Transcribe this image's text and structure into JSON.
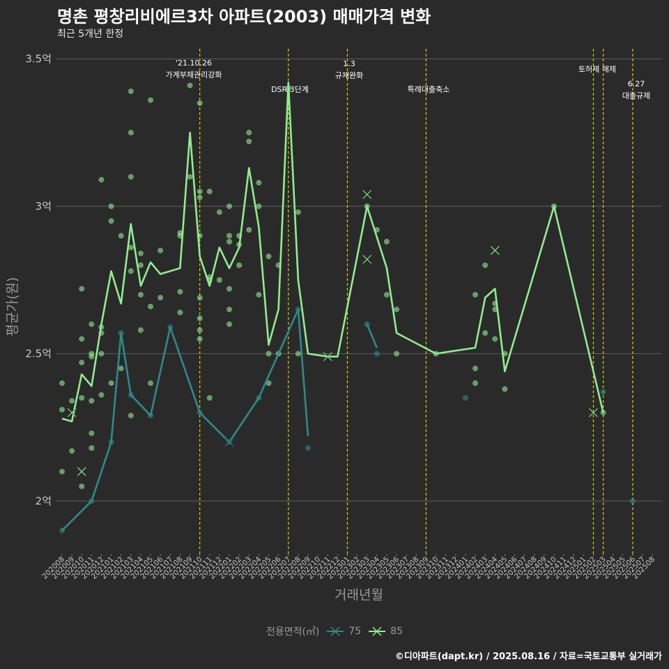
{
  "title": "명촌 평창리비에르3차 아파트(2003) 매매가격 변화",
  "subtitle": "최근 5개년 한정",
  "caption": "©디아파트(dapt.kr) / 2025.08.16 / 자료=국토교통부 실거래가",
  "legend": {
    "title": "전용면적(㎡)",
    "items": [
      "75",
      "85"
    ]
  },
  "colors": {
    "background": "#2b2a2b",
    "grid": "#555555",
    "vline": "#d4d400",
    "s75": "#2e8b8b",
    "s85": "#90ee90"
  },
  "chart_data": {
    "type": "line",
    "xlabel": "거래년월",
    "ylabel": "평균가(원)",
    "ylim": [
      1.8,
      3.55
    ],
    "yticks": [
      {
        "value": 2.0,
        "label": "2억"
      },
      {
        "value": 2.5,
        "label": "2.5억"
      },
      {
        "value": 3.0,
        "label": "3억"
      },
      {
        "value": 3.5,
        "label": "3.5억"
      }
    ],
    "x_categories": [
      "202008",
      "202009",
      "202010",
      "202011",
      "202012",
      "202101",
      "202102",
      "202103",
      "202104",
      "202105",
      "202106",
      "202107",
      "202108",
      "202109",
      "202110",
      "202111",
      "202112",
      "202201",
      "202202",
      "202203",
      "202204",
      "202205",
      "202206",
      "202207",
      "202208",
      "202209",
      "202210",
      "202211",
      "202212",
      "202301",
      "202302",
      "202303",
      "202304",
      "202305",
      "202306",
      "202307",
      "202308",
      "202309",
      "202310",
      "202311",
      "202312",
      "202401",
      "202402",
      "202403",
      "202404",
      "202405",
      "202406",
      "202407",
      "202408",
      "202409",
      "202410",
      "202411",
      "202412",
      "202501",
      "202502",
      "202503",
      "202504",
      "202505",
      "202506",
      "202507",
      "202508"
    ],
    "grid": true,
    "legend_position": "bottom",
    "series": [
      {
        "name": "75",
        "line": [
          [
            "202008",
            1.9
          ],
          [
            "202011",
            2.0
          ],
          [
            "202101",
            2.2
          ],
          [
            "202102",
            2.57
          ],
          [
            "202103",
            2.36
          ],
          [
            "202105",
            2.29
          ],
          [
            "202107",
            2.59
          ],
          [
            "202110",
            2.3
          ],
          [
            "202201",
            2.2
          ],
          [
            "202204",
            2.35
          ],
          [
            "202208",
            2.65
          ],
          [
            "202209",
            2.22
          ]
        ],
        "line2": [
          [
            "202303",
            2.6
          ],
          [
            "202304",
            2.52
          ]
        ],
        "points": [
          [
            "202008",
            1.9
          ],
          [
            "202011",
            2.0
          ],
          [
            "202101",
            2.2
          ],
          [
            "202102",
            2.57
          ],
          [
            "202103",
            2.36
          ],
          [
            "202105",
            2.29
          ],
          [
            "202107",
            2.59
          ],
          [
            "202110",
            2.3
          ],
          [
            "202201",
            2.2
          ],
          [
            "202204",
            2.35
          ],
          [
            "202208",
            2.65
          ],
          [
            "202209",
            2.18
          ],
          [
            "202303",
            2.6
          ],
          [
            "202304",
            2.5
          ],
          [
            "202401",
            2.35
          ],
          [
            "202503",
            2.37
          ],
          [
            "202506",
            2.0
          ]
        ],
        "crosses": [
          [
            "202201",
            2.2
          ]
        ]
      },
      {
        "name": "85",
        "line": [
          [
            "202008",
            2.28
          ],
          [
            "202009",
            2.27
          ],
          [
            "202010",
            2.43
          ],
          [
            "202011",
            2.39
          ],
          [
            "202012",
            2.6
          ],
          [
            "202101",
            2.78
          ],
          [
            "202102",
            2.67
          ],
          [
            "202103",
            2.94
          ],
          [
            "202104",
            2.73
          ],
          [
            "202105",
            2.81
          ],
          [
            "202106",
            2.77
          ],
          [
            "202108",
            2.79
          ],
          [
            "202109",
            3.25
          ],
          [
            "202110",
            2.83
          ],
          [
            "202111",
            2.73
          ],
          [
            "202112",
            2.86
          ],
          [
            "202201",
            2.79
          ],
          [
            "202202",
            2.86
          ],
          [
            "202203",
            3.13
          ],
          [
            "202204",
            2.93
          ],
          [
            "202205",
            2.53
          ],
          [
            "202206",
            2.65
          ],
          [
            "202207",
            3.42
          ],
          [
            "202208",
            2.75
          ],
          [
            "202209",
            2.5
          ],
          [
            "202211",
            2.49
          ],
          [
            "202212",
            2.49
          ],
          [
            "202303",
            3.0
          ],
          [
            "202305",
            2.79
          ],
          [
            "202306",
            2.57
          ],
          [
            "202310",
            2.5
          ],
          [
            "202402",
            2.52
          ],
          [
            "202403",
            2.69
          ],
          [
            "202404",
            2.72
          ],
          [
            "202405",
            2.44
          ],
          [
            "202410",
            3.0
          ],
          [
            "202503",
            2.3
          ]
        ],
        "points": [
          [
            "202008",
            2.4
          ],
          [
            "202008",
            2.31
          ],
          [
            "202008",
            2.1
          ],
          [
            "202009",
            2.34
          ],
          [
            "202009",
            2.17
          ],
          [
            "202010",
            2.72
          ],
          [
            "202010",
            2.55
          ],
          [
            "202010",
            2.47
          ],
          [
            "202010",
            2.35
          ],
          [
            "202010",
            2.05
          ],
          [
            "202011",
            2.6
          ],
          [
            "202011",
            2.5
          ],
          [
            "202011",
            2.49
          ],
          [
            "202011",
            2.34
          ],
          [
            "202011",
            2.23
          ],
          [
            "202011",
            2.18
          ],
          [
            "202012",
            3.09
          ],
          [
            "202012",
            2.59
          ],
          [
            "202012",
            2.57
          ],
          [
            "202012",
            2.5
          ],
          [
            "202012",
            2.36
          ],
          [
            "202101",
            3.0
          ],
          [
            "202101",
            2.95
          ],
          [
            "202101",
            2.4
          ],
          [
            "202102",
            2.9
          ],
          [
            "202102",
            2.45
          ],
          [
            "202103",
            3.39
          ],
          [
            "202103",
            3.25
          ],
          [
            "202103",
            3.1
          ],
          [
            "202103",
            2.86
          ],
          [
            "202103",
            2.78
          ],
          [
            "202103",
            2.29
          ],
          [
            "202104",
            2.84
          ],
          [
            "202104",
            2.8
          ],
          [
            "202104",
            2.7
          ],
          [
            "202104",
            2.58
          ],
          [
            "202105",
            3.36
          ],
          [
            "202105",
            2.66
          ],
          [
            "202105",
            2.4
          ],
          [
            "202106",
            2.85
          ],
          [
            "202106",
            2.69
          ],
          [
            "202108",
            2.91
          ],
          [
            "202108",
            2.9
          ],
          [
            "202108",
            2.71
          ],
          [
            "202108",
            2.64
          ],
          [
            "202109",
            3.41
          ],
          [
            "202109",
            3.1
          ],
          [
            "202110",
            3.35
          ],
          [
            "202110",
            3.05
          ],
          [
            "202110",
            3.03
          ],
          [
            "202110",
            2.9
          ],
          [
            "202110",
            2.69
          ],
          [
            "202110",
            2.62
          ],
          [
            "202110",
            2.58
          ],
          [
            "202110",
            2.55
          ],
          [
            "202111",
            3.05
          ],
          [
            "202111",
            2.76
          ],
          [
            "202111",
            2.75
          ],
          [
            "202111",
            2.35
          ],
          [
            "202112",
            2.98
          ],
          [
            "202112",
            2.75
          ],
          [
            "202201",
            3.0
          ],
          [
            "202201",
            2.9
          ],
          [
            "202201",
            2.88
          ],
          [
            "202201",
            2.72
          ],
          [
            "202201",
            2.65
          ],
          [
            "202201",
            2.6
          ],
          [
            "202202",
            2.9
          ],
          [
            "202202",
            2.87
          ],
          [
            "202202",
            2.8
          ],
          [
            "202203",
            3.25
          ],
          [
            "202203",
            3.22
          ],
          [
            "202203",
            2.92
          ],
          [
            "202204",
            3.08
          ],
          [
            "202204",
            3.0
          ],
          [
            "202204",
            2.7
          ],
          [
            "202205",
            2.83
          ],
          [
            "202205",
            2.5
          ],
          [
            "202205",
            2.4
          ],
          [
            "202206",
            2.8
          ],
          [
            "202206",
            2.5
          ],
          [
            "202207",
            3.4
          ],
          [
            "202208",
            2.98
          ],
          [
            "202208",
            2.5
          ],
          [
            "202303",
            3.0
          ],
          [
            "202304",
            2.92
          ],
          [
            "202305",
            2.88
          ],
          [
            "202305",
            2.7
          ],
          [
            "202306",
            2.65
          ],
          [
            "202306",
            2.5
          ],
          [
            "202310",
            2.5
          ],
          [
            "202402",
            2.7
          ],
          [
            "202402",
            2.45
          ],
          [
            "202402",
            2.4
          ],
          [
            "202403",
            2.8
          ],
          [
            "202403",
            2.57
          ],
          [
            "202404",
            2.67
          ],
          [
            "202404",
            2.65
          ],
          [
            "202404",
            2.55
          ],
          [
            "202405",
            2.5
          ],
          [
            "202405",
            2.38
          ],
          [
            "202410",
            3.0
          ],
          [
            "202503",
            2.3
          ]
        ],
        "crosses": [
          [
            "202009",
            2.3
          ],
          [
            "202010",
            2.1
          ],
          [
            "202211",
            2.49
          ],
          [
            "202303",
            3.04
          ],
          [
            "202303",
            2.82
          ],
          [
            "202404",
            2.85
          ],
          [
            "202502",
            2.3
          ]
        ]
      }
    ],
    "events": [
      {
        "x": "202110",
        "label1": "'21.10.26",
        "label2": "가계부채관리강화"
      },
      {
        "x": "202207",
        "label1": "",
        "label2": "DSR 3단계"
      },
      {
        "x": "202301",
        "label1": "1.3",
        "label2": "규제완화"
      },
      {
        "x": "202309",
        "label1": "",
        "label2": "특례대출축소"
      },
      {
        "x": "202502",
        "label1": "",
        "label2": "토허제 해제"
      },
      {
        "x": "202503",
        "label1": "",
        "label2": ""
      },
      {
        "x": "202506",
        "label1": "6.27",
        "label2": "대출규제"
      }
    ]
  }
}
